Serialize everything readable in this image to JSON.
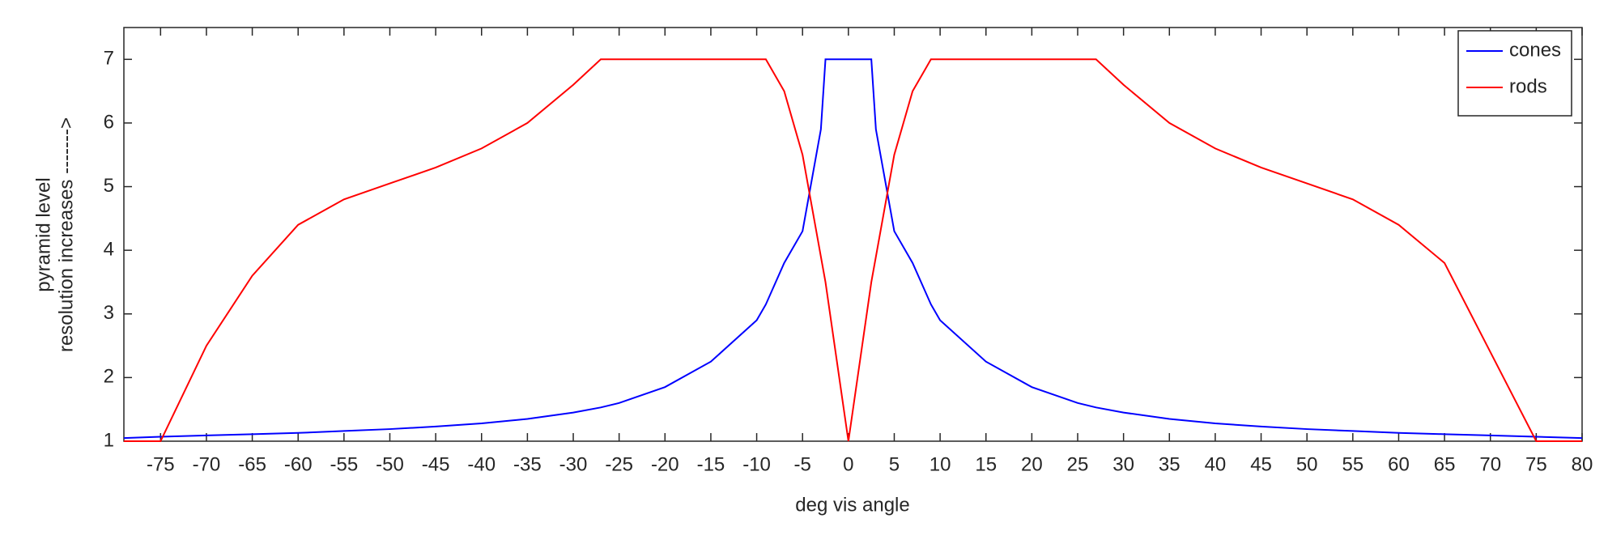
{
  "chart_data": {
    "type": "line",
    "xlabel": "deg vis angle",
    "ylabel": [
      "pyramid level",
      "resolution increases ------->"
    ],
    "x": [
      -79,
      -75,
      -70,
      -65,
      -60,
      -55,
      -50,
      -45,
      -40,
      -35,
      -30,
      -27,
      -25,
      -20,
      -15,
      -10,
      -9,
      -7,
      -5,
      -3,
      -2.5,
      0,
      2.5,
      3,
      5,
      7,
      9,
      10,
      15,
      20,
      25,
      27,
      30,
      35,
      40,
      45,
      50,
      55,
      60,
      65,
      70,
      75,
      80
    ],
    "series": [
      {
        "name": "cones",
        "color": "#0000ff",
        "values": [
          1.05,
          1.07,
          1.09,
          1.11,
          1.13,
          1.16,
          1.19,
          1.23,
          1.28,
          1.35,
          1.45,
          1.53,
          1.6,
          1.85,
          2.25,
          2.9,
          3.15,
          3.8,
          4.3,
          5.9,
          7,
          7,
          7,
          5.9,
          4.3,
          3.8,
          3.15,
          2.9,
          2.25,
          1.85,
          1.6,
          1.53,
          1.45,
          1.35,
          1.28,
          1.23,
          1.19,
          1.16,
          1.13,
          1.11,
          1.09,
          1.07,
          1.05
        ]
      },
      {
        "name": "rods",
        "color": "#ff0000",
        "values": [
          1,
          1,
          2.5,
          3.6,
          4.4,
          4.8,
          5.05,
          5.3,
          5.6,
          6.0,
          6.6,
          7,
          7,
          7,
          7,
          7,
          7,
          6.5,
          5.5,
          3.9,
          3.5,
          1,
          3.5,
          3.9,
          5.5,
          6.5,
          7,
          7,
          7,
          7,
          7,
          7,
          6.6,
          6.0,
          5.6,
          5.3,
          5.05,
          4.8,
          4.4,
          3.8,
          2.4,
          1,
          1
        ]
      }
    ],
    "xlim": [
      -79,
      80
    ],
    "xticks": [
      -75,
      -70,
      -65,
      -60,
      -55,
      -50,
      -45,
      -40,
      -35,
      -30,
      -25,
      -20,
      -15,
      -10,
      -5,
      0,
      5,
      10,
      15,
      20,
      25,
      30,
      35,
      40,
      45,
      50,
      55,
      60,
      65,
      70,
      75,
      80
    ],
    "ylim": [
      1,
      7.5
    ],
    "yticks": [
      1,
      2,
      3,
      4,
      5,
      6,
      7
    ],
    "grid": false,
    "legend": "upper right"
  }
}
